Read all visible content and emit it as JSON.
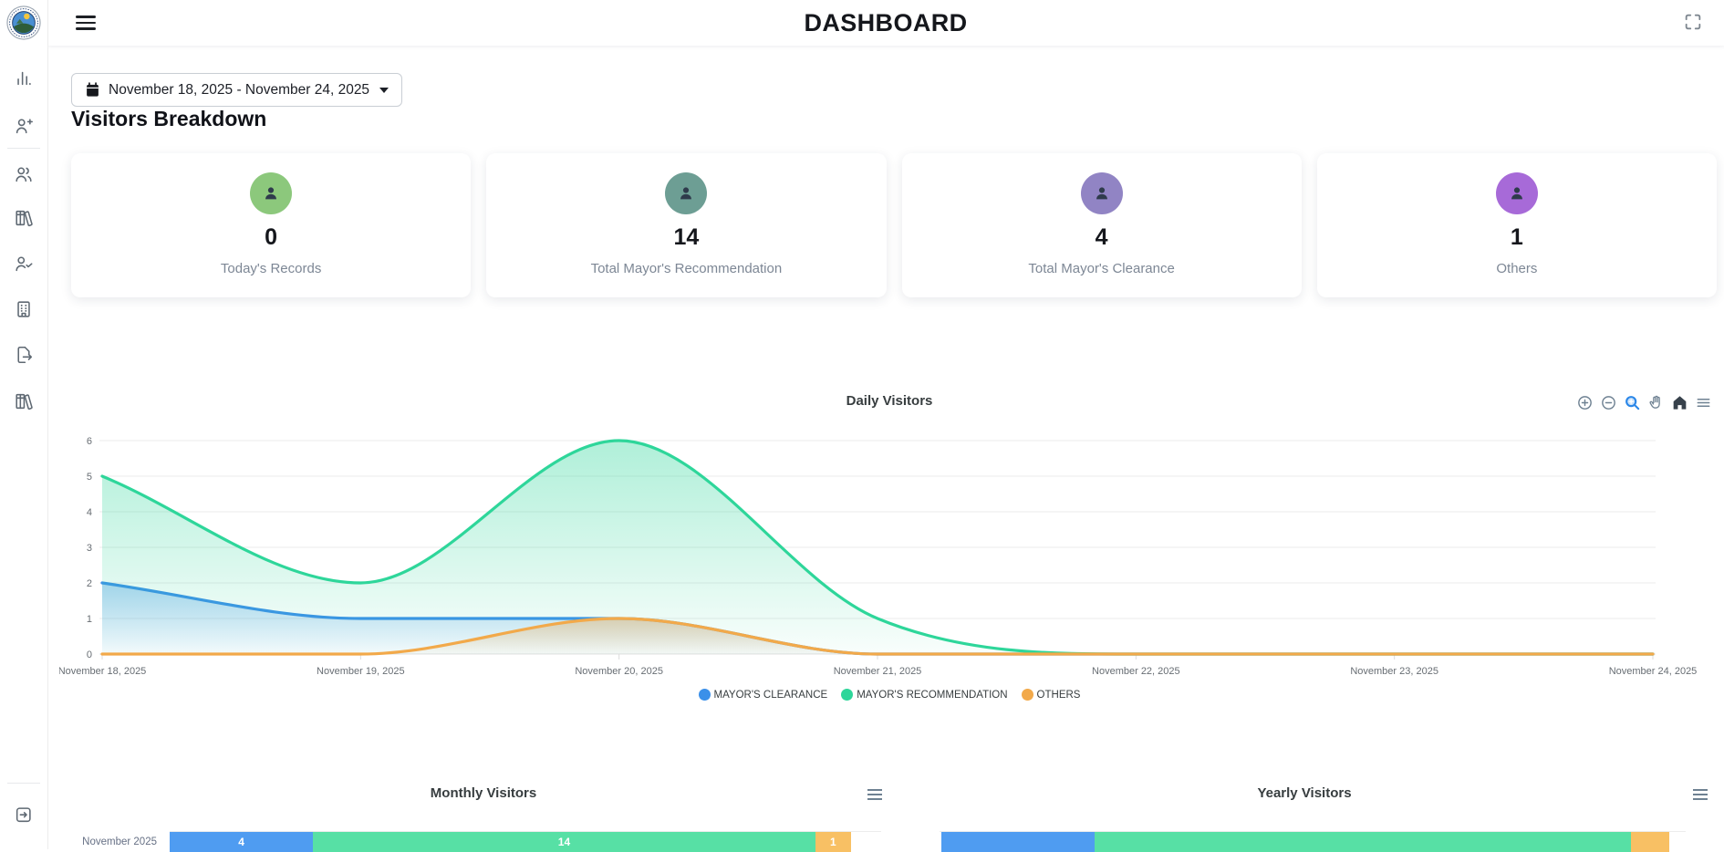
{
  "app": {
    "title": "DASHBOARD"
  },
  "sidebar": {
    "logo_icon": "municipal-seal-logo",
    "items": [
      {
        "icon": "bar-chart-icon"
      },
      {
        "icon": "user-plus-icon"
      },
      {
        "icon": "users-icon"
      },
      {
        "icon": "library-icon"
      },
      {
        "icon": "user-check-icon"
      },
      {
        "icon": "building-icon"
      },
      {
        "icon": "file-export-icon"
      },
      {
        "icon": "library-icon"
      }
    ],
    "logout_icon": "logout-icon"
  },
  "header": {
    "menu_icon": "hamburger-icon",
    "fullscreen_icon": "fullscreen-icon"
  },
  "filters": {
    "calendar_icon": "calendar-icon",
    "date_range": "November 18, 2025 - November 24, 2025"
  },
  "section": {
    "title": "Visitors Breakdown"
  },
  "stat_cards": [
    {
      "icon": "person-icon",
      "value": "0",
      "label": "Today's Records",
      "circle_color": "#8cc87c"
    },
    {
      "icon": "person-icon",
      "value": "14",
      "label": "Total Mayor's Recommendation",
      "circle_color": "#6d9e94"
    },
    {
      "icon": "person-icon",
      "value": "4",
      "label": "Total Mayor's Clearance",
      "circle_color": "#9184c4"
    },
    {
      "icon": "person-icon",
      "value": "1",
      "label": "Others",
      "circle_color": "#a76ad8"
    }
  ],
  "chart_data": [
    {
      "type": "area",
      "title": "Daily Visitors",
      "curve": "smooth",
      "x": [
        "November 18, 2025",
        "November 19, 2025",
        "November 20, 2025",
        "November 21, 2025",
        "November 22, 2025",
        "November 23, 2025",
        "November 24, 2025"
      ],
      "series": [
        {
          "name": "MAYOR'S CLEARANCE",
          "color": "#3b90e9",
          "values": [
            2,
            1,
            1,
            0,
            0,
            0,
            0
          ]
        },
        {
          "name": "MAYOR'S RECOMMENDATION",
          "color": "#2ed69a",
          "values": [
            5,
            2,
            6,
            1,
            0,
            0,
            0
          ]
        },
        {
          "name": "OTHERS",
          "color": "#f2a94a",
          "values": [
            0,
            0,
            1,
            0,
            0,
            0,
            0
          ]
        }
      ],
      "ylim": [
        0,
        6
      ],
      "yticks": [
        0,
        1,
        2,
        3,
        4,
        5,
        6
      ],
      "grid": "horizontal",
      "legend_position": "bottom",
      "toolbar_icons": [
        "zoom-in-icon",
        "zoom-out-icon",
        "selection-zoom-icon",
        "pan-icon",
        "home-icon",
        "menu-icon"
      ]
    },
    {
      "type": "bar",
      "orientation": "horizontal",
      "stacked": true,
      "title": "Monthly Visitors",
      "categories": [
        "November 2025"
      ],
      "series": [
        {
          "name": "MAYOR'S CLEARANCE",
          "color": "#4f9cf1",
          "values": [
            4
          ]
        },
        {
          "name": "MAYOR'S RECOMMENDATION",
          "color": "#57e0a5",
          "values": [
            14
          ]
        },
        {
          "name": "OTHERS",
          "color": "#f8c064",
          "values": [
            1
          ]
        }
      ],
      "data_labels": true,
      "menu_icon": "menu-icon"
    },
    {
      "type": "bar",
      "orientation": "horizontal",
      "stacked": true,
      "title": "Yearly Visitors",
      "categories": [
        ""
      ],
      "series": [
        {
          "name": "MAYOR'S CLEARANCE",
          "color": "#4f9cf1",
          "values": [
            4
          ]
        },
        {
          "name": "MAYOR'S RECOMMENDATION",
          "color": "#57e0a5",
          "values": [
            14
          ]
        },
        {
          "name": "OTHERS",
          "color": "#f8c064",
          "values": [
            1
          ]
        }
      ],
      "data_labels": false,
      "menu_icon": "menu-icon"
    }
  ]
}
